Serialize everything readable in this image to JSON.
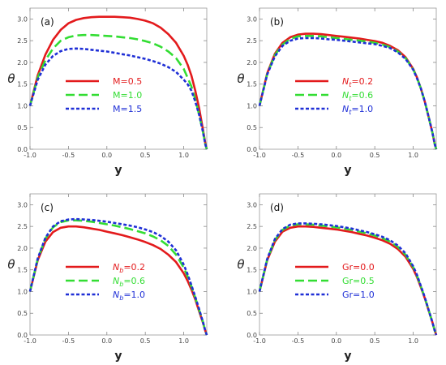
{
  "chart_data": [
    {
      "type": "line",
      "panel_label": "(a)",
      "xlabel": "y",
      "ylabel": "θ",
      "xlim": [
        -1.0,
        1.3
      ],
      "ylim": [
        0.0,
        3.25
      ],
      "xticks": [
        "-1.0",
        "-0.5",
        "0.0",
        "0.5",
        "1.0"
      ],
      "xtick_values": [
        -1.0,
        -0.5,
        0.0,
        0.5,
        1.0
      ],
      "yticks": [
        "0.0",
        "0.5",
        "1.0",
        "1.5",
        "2.0",
        "2.5",
        "3.0"
      ],
      "ytick_values": [
        0.0,
        0.5,
        1.0,
        1.5,
        2.0,
        2.5,
        3.0
      ],
      "legend_position": "center-left",
      "series": [
        {
          "prefix": "M",
          "suffix": "=0.5",
          "color": "#e31a1c",
          "dash": "solid",
          "x": [
            -1.0,
            -0.9,
            -0.8,
            -0.7,
            -0.6,
            -0.5,
            -0.4,
            -0.3,
            -0.2,
            -0.1,
            0.0,
            0.1,
            0.2,
            0.3,
            0.4,
            0.5,
            0.6,
            0.7,
            0.8,
            0.9,
            1.0,
            1.05,
            1.1,
            1.15,
            1.2,
            1.25,
            1.28,
            1.3
          ],
          "y": [
            1.0,
            1.7,
            2.18,
            2.52,
            2.75,
            2.9,
            2.98,
            3.02,
            3.04,
            3.05,
            3.05,
            3.05,
            3.04,
            3.03,
            3.0,
            2.96,
            2.9,
            2.8,
            2.65,
            2.45,
            2.15,
            1.95,
            1.7,
            1.35,
            0.95,
            0.45,
            0.15,
            0.0
          ]
        },
        {
          "prefix": "M",
          "suffix": "=1.0",
          "color": "#33dd33",
          "dash": "long",
          "x": [
            -1.0,
            -0.9,
            -0.8,
            -0.7,
            -0.6,
            -0.5,
            -0.4,
            -0.3,
            -0.2,
            -0.1,
            0.0,
            0.1,
            0.2,
            0.3,
            0.4,
            0.5,
            0.6,
            0.7,
            0.8,
            0.9,
            1.0,
            1.05,
            1.1,
            1.15,
            1.2,
            1.25,
            1.28,
            1.3
          ],
          "y": [
            1.0,
            1.65,
            2.05,
            2.32,
            2.5,
            2.58,
            2.62,
            2.63,
            2.63,
            2.62,
            2.61,
            2.6,
            2.58,
            2.56,
            2.53,
            2.49,
            2.44,
            2.36,
            2.25,
            2.1,
            1.85,
            1.65,
            1.45,
            1.15,
            0.8,
            0.4,
            0.12,
            0.0
          ]
        },
        {
          "prefix": "M",
          "suffix": "=1.5",
          "color": "#1f2fd6",
          "dash": "short",
          "x": [
            -1.0,
            -0.9,
            -0.8,
            -0.7,
            -0.6,
            -0.5,
            -0.4,
            -0.3,
            -0.2,
            -0.1,
            0.0,
            0.1,
            0.2,
            0.3,
            0.4,
            0.5,
            0.6,
            0.7,
            0.8,
            0.9,
            1.0,
            1.05,
            1.1,
            1.15,
            1.2,
            1.25,
            1.28,
            1.3
          ],
          "y": [
            1.0,
            1.6,
            1.95,
            2.15,
            2.26,
            2.31,
            2.32,
            2.31,
            2.29,
            2.27,
            2.25,
            2.22,
            2.19,
            2.16,
            2.12,
            2.08,
            2.03,
            1.97,
            1.89,
            1.78,
            1.6,
            1.5,
            1.35,
            1.1,
            0.8,
            0.4,
            0.12,
            0.0
          ]
        }
      ]
    },
    {
      "type": "line",
      "panel_label": "(b)",
      "xlabel": "y",
      "ylabel": "θ",
      "xlim": [
        -1.0,
        1.3
      ],
      "ylim": [
        0.0,
        3.25
      ],
      "xticks": [
        "-1.0",
        "-0.5",
        "0.0",
        "0.5",
        "1.0"
      ],
      "xtick_values": [
        -1.0,
        -0.5,
        0.0,
        0.5,
        1.0
      ],
      "yticks": [
        "0.0",
        "0.5",
        "1.0",
        "1.5",
        "2.0",
        "2.5",
        "3.0"
      ],
      "ytick_values": [
        0.0,
        0.5,
        1.0,
        1.5,
        2.0,
        2.5,
        3.0
      ],
      "legend_position": "center-left",
      "series": [
        {
          "prefix": "N",
          "sub": "t",
          "suffix": "=0.2",
          "color": "#e31a1c",
          "dash": "solid",
          "x": [
            -1.0,
            -0.9,
            -0.8,
            -0.7,
            -0.6,
            -0.5,
            -0.4,
            -0.3,
            -0.2,
            -0.1,
            0.0,
            0.1,
            0.2,
            0.3,
            0.4,
            0.5,
            0.6,
            0.7,
            0.8,
            0.9,
            1.0,
            1.05,
            1.1,
            1.15,
            1.2,
            1.25,
            1.28,
            1.3
          ],
          "y": [
            1.0,
            1.75,
            2.2,
            2.45,
            2.58,
            2.64,
            2.66,
            2.66,
            2.65,
            2.63,
            2.61,
            2.59,
            2.57,
            2.55,
            2.52,
            2.49,
            2.45,
            2.38,
            2.28,
            2.12,
            1.85,
            1.65,
            1.4,
            1.1,
            0.75,
            0.38,
            0.12,
            0.0
          ]
        },
        {
          "prefix": "N",
          "sub": "t",
          "suffix": "=0.6",
          "color": "#33dd33",
          "dash": "long",
          "x": [
            -1.0,
            -0.9,
            -0.8,
            -0.7,
            -0.6,
            -0.5,
            -0.4,
            -0.3,
            -0.2,
            -0.1,
            0.0,
            0.1,
            0.2,
            0.3,
            0.4,
            0.5,
            0.6,
            0.7,
            0.8,
            0.9,
            1.0,
            1.05,
            1.1,
            1.15,
            1.2,
            1.25,
            1.28,
            1.3
          ],
          "y": [
            1.0,
            1.73,
            2.17,
            2.41,
            2.54,
            2.6,
            2.61,
            2.61,
            2.6,
            2.58,
            2.56,
            2.54,
            2.52,
            2.5,
            2.48,
            2.45,
            2.41,
            2.35,
            2.25,
            2.1,
            1.84,
            1.64,
            1.4,
            1.1,
            0.75,
            0.38,
            0.12,
            0.0
          ]
        },
        {
          "prefix": "N",
          "sub": "t",
          "suffix": "=1.0",
          "color": "#1f2fd6",
          "dash": "short",
          "x": [
            -1.0,
            -0.9,
            -0.8,
            -0.7,
            -0.6,
            -0.5,
            -0.4,
            -0.3,
            -0.2,
            -0.1,
            0.0,
            0.1,
            0.2,
            0.3,
            0.4,
            0.5,
            0.6,
            0.7,
            0.8,
            0.9,
            1.0,
            1.05,
            1.1,
            1.15,
            1.2,
            1.25,
            1.28,
            1.3
          ],
          "y": [
            1.0,
            1.72,
            2.14,
            2.38,
            2.5,
            2.55,
            2.56,
            2.56,
            2.55,
            2.53,
            2.52,
            2.5,
            2.48,
            2.46,
            2.44,
            2.42,
            2.38,
            2.33,
            2.23,
            2.08,
            1.83,
            1.63,
            1.4,
            1.1,
            0.75,
            0.38,
            0.12,
            0.0
          ]
        }
      ]
    },
    {
      "type": "line",
      "panel_label": "(c)",
      "xlabel": "y",
      "ylabel": "θ",
      "xlim": [
        -1.0,
        1.3
      ],
      "ylim": [
        0.0,
        3.25
      ],
      "xticks": [
        "-1.0",
        "-0.5",
        "0.0",
        "0.5",
        "1.0"
      ],
      "xtick_values": [
        -1.0,
        -0.5,
        0.0,
        0.5,
        1.0
      ],
      "yticks": [
        "0.0",
        "0.5",
        "1.0",
        "1.5",
        "2.0",
        "2.5",
        "3.0"
      ],
      "ytick_values": [
        0.0,
        0.5,
        1.0,
        1.5,
        2.0,
        2.5,
        3.0
      ],
      "legend_position": "center-left",
      "series": [
        {
          "prefix": "N",
          "sub": "b",
          "suffix": "=0.2",
          "color": "#e31a1c",
          "dash": "solid",
          "x": [
            -1.0,
            -0.9,
            -0.8,
            -0.7,
            -0.6,
            -0.5,
            -0.4,
            -0.3,
            -0.2,
            -0.1,
            0.0,
            0.1,
            0.2,
            0.3,
            0.4,
            0.5,
            0.6,
            0.7,
            0.8,
            0.9,
            1.0,
            1.05,
            1.1,
            1.15,
            1.2,
            1.25,
            1.28,
            1.3
          ],
          "y": [
            1.0,
            1.72,
            2.15,
            2.37,
            2.47,
            2.5,
            2.5,
            2.48,
            2.45,
            2.42,
            2.38,
            2.34,
            2.3,
            2.25,
            2.2,
            2.14,
            2.07,
            1.98,
            1.85,
            1.68,
            1.42,
            1.25,
            1.05,
            0.82,
            0.55,
            0.28,
            0.1,
            0.0
          ]
        },
        {
          "prefix": "N",
          "sub": "b",
          "suffix": "=0.6",
          "color": "#33dd33",
          "dash": "long",
          "x": [
            -1.0,
            -0.9,
            -0.8,
            -0.7,
            -0.6,
            -0.5,
            -0.4,
            -0.3,
            -0.2,
            -0.1,
            0.0,
            0.1,
            0.2,
            0.3,
            0.4,
            0.5,
            0.6,
            0.7,
            0.8,
            0.9,
            1.0,
            1.05,
            1.1,
            1.15,
            1.2,
            1.25,
            1.28,
            1.3
          ],
          "y": [
            1.0,
            1.75,
            2.22,
            2.48,
            2.6,
            2.64,
            2.64,
            2.63,
            2.61,
            2.58,
            2.55,
            2.52,
            2.48,
            2.44,
            2.39,
            2.34,
            2.27,
            2.18,
            2.05,
            1.85,
            1.55,
            1.35,
            1.12,
            0.86,
            0.58,
            0.3,
            0.1,
            0.0
          ]
        },
        {
          "prefix": "N",
          "sub": "b",
          "suffix": "=1.0",
          "color": "#1f2fd6",
          "dash": "short",
          "x": [
            -1.0,
            -0.9,
            -0.8,
            -0.7,
            -0.6,
            -0.5,
            -0.4,
            -0.3,
            -0.2,
            -0.1,
            0.0,
            0.1,
            0.2,
            0.3,
            0.4,
            0.5,
            0.6,
            0.7,
            0.8,
            0.9,
            1.0,
            1.05,
            1.1,
            1.15,
            1.2,
            1.25,
            1.28,
            1.3
          ],
          "y": [
            1.0,
            1.76,
            2.24,
            2.5,
            2.62,
            2.66,
            2.67,
            2.66,
            2.65,
            2.63,
            2.61,
            2.58,
            2.55,
            2.52,
            2.48,
            2.43,
            2.37,
            2.28,
            2.15,
            1.95,
            1.62,
            1.4,
            1.15,
            0.88,
            0.6,
            0.3,
            0.1,
            0.0
          ]
        }
      ]
    },
    {
      "type": "line",
      "panel_label": "(d)",
      "xlabel": "y",
      "ylabel": "θ",
      "xlim": [
        -1.0,
        1.3
      ],
      "ylim": [
        0.0,
        3.25
      ],
      "xticks": [
        "-1.0",
        "-0.5",
        "0.0",
        "0.5",
        "1.0"
      ],
      "xtick_values": [
        -1.0,
        -0.5,
        0.0,
        0.5,
        1.0
      ],
      "yticks": [
        "0.0",
        "0.5",
        "1.0",
        "1.5",
        "2.0",
        "2.5",
        "3.0"
      ],
      "ytick_values": [
        0.0,
        0.5,
        1.0,
        1.5,
        2.0,
        2.5,
        3.0
      ],
      "legend_position": "center-left",
      "series": [
        {
          "prefix": "Gr",
          "suffix": "=0.0",
          "color": "#e31a1c",
          "dash": "solid",
          "x": [
            -1.0,
            -0.9,
            -0.8,
            -0.7,
            -0.6,
            -0.5,
            -0.4,
            -0.3,
            -0.2,
            -0.1,
            0.0,
            0.1,
            0.2,
            0.3,
            0.4,
            0.5,
            0.6,
            0.7,
            0.8,
            0.9,
            1.0,
            1.05,
            1.1,
            1.15,
            1.2,
            1.25,
            1.28,
            1.3
          ],
          "y": [
            1.0,
            1.72,
            2.15,
            2.38,
            2.47,
            2.5,
            2.5,
            2.49,
            2.47,
            2.45,
            2.43,
            2.4,
            2.37,
            2.33,
            2.29,
            2.24,
            2.18,
            2.1,
            1.98,
            1.8,
            1.52,
            1.33,
            1.1,
            0.85,
            0.57,
            0.29,
            0.1,
            0.0
          ]
        },
        {
          "prefix": "Gr",
          "suffix": "=0.5",
          "color": "#33dd33",
          "dash": "long",
          "x": [
            -1.0,
            -0.9,
            -0.8,
            -0.7,
            -0.6,
            -0.5,
            -0.4,
            -0.3,
            -0.2,
            -0.1,
            0.0,
            0.1,
            0.2,
            0.3,
            0.4,
            0.5,
            0.6,
            0.7,
            0.8,
            0.9,
            1.0,
            1.05,
            1.1,
            1.15,
            1.2,
            1.25,
            1.28,
            1.3
          ],
          "y": [
            1.0,
            1.74,
            2.19,
            2.42,
            2.52,
            2.55,
            2.55,
            2.54,
            2.52,
            2.5,
            2.48,
            2.45,
            2.42,
            2.38,
            2.34,
            2.29,
            2.23,
            2.15,
            2.03,
            1.85,
            1.56,
            1.36,
            1.12,
            0.86,
            0.58,
            0.29,
            0.1,
            0.0
          ]
        },
        {
          "prefix": "Gr",
          "suffix": "=1.0",
          "color": "#1f2fd6",
          "dash": "short",
          "x": [
            -1.0,
            -0.9,
            -0.8,
            -0.7,
            -0.6,
            -0.5,
            -0.4,
            -0.3,
            -0.2,
            -0.1,
            0.0,
            0.1,
            0.2,
            0.3,
            0.4,
            0.5,
            0.6,
            0.7,
            0.8,
            0.9,
            1.0,
            1.05,
            1.1,
            1.15,
            1.2,
            1.25,
            1.28,
            1.3
          ],
          "y": [
            1.0,
            1.75,
            2.21,
            2.44,
            2.54,
            2.57,
            2.57,
            2.56,
            2.55,
            2.53,
            2.51,
            2.48,
            2.45,
            2.41,
            2.37,
            2.32,
            2.26,
            2.18,
            2.06,
            1.88,
            1.58,
            1.38,
            1.13,
            0.87,
            0.58,
            0.29,
            0.1,
            0.0
          ]
        }
      ]
    }
  ]
}
